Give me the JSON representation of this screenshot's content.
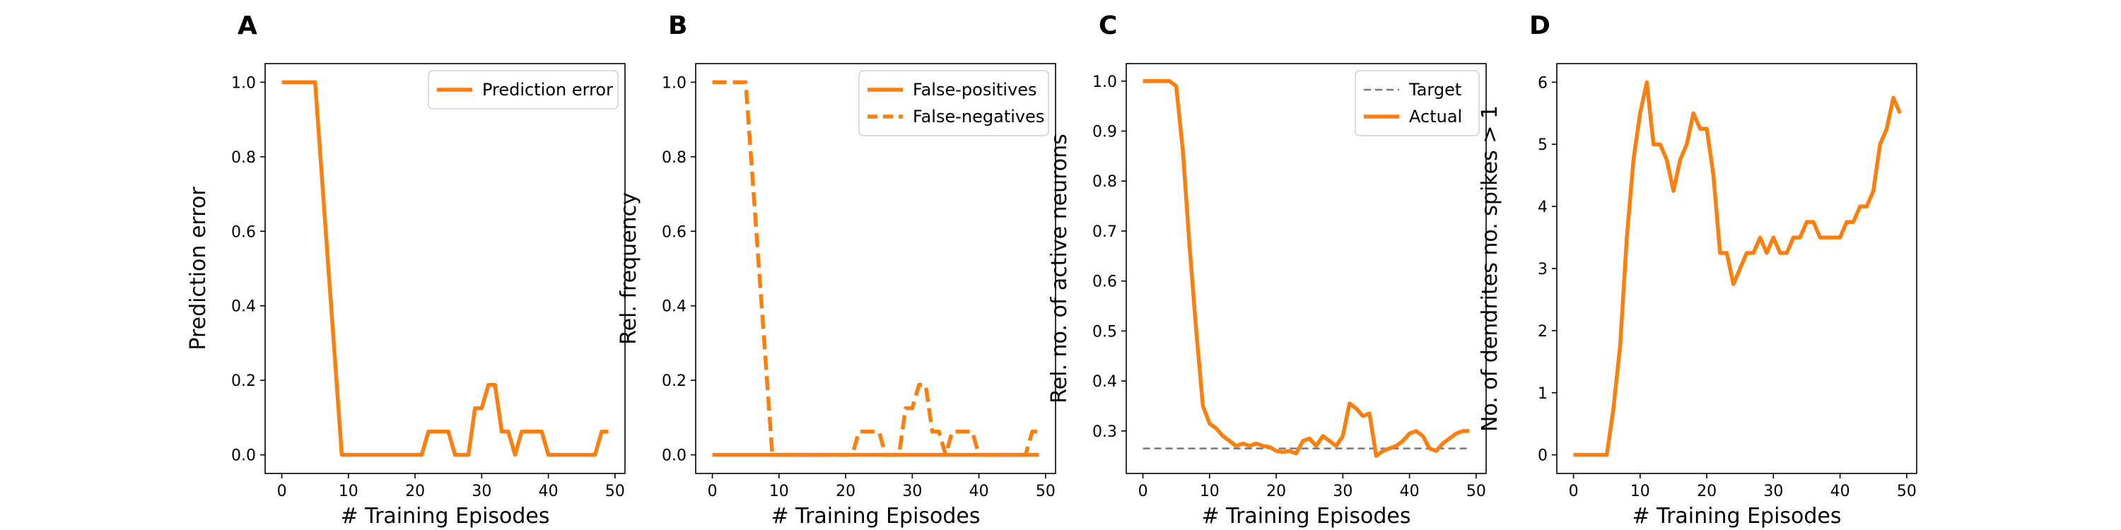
{
  "colors": {
    "orange": "#ff7f0e",
    "target": "#707a8a",
    "axis": "#000000"
  },
  "chart_data": [
    {
      "panel": "A",
      "type": "line",
      "xlabel": "# Training Episodes",
      "ylabel": "Prediction error",
      "xlim": [
        -2.5,
        51.5
      ],
      "ylim": [
        -0.05,
        1.05
      ],
      "xticks": [
        0,
        10,
        20,
        30,
        40,
        50
      ],
      "yticks": [
        0.0,
        0.2,
        0.4,
        0.6,
        0.8,
        1.0
      ],
      "ytick_labels": [
        "0.0",
        "0.2",
        "0.4",
        "0.6",
        "0.8",
        "1.0"
      ],
      "legend_position": "upper right",
      "series": [
        {
          "name": "Prediction error",
          "color": "#ff7f0e",
          "style": "solid",
          "x": [
            0,
            1,
            2,
            3,
            4,
            5,
            6,
            7,
            8,
            9,
            10,
            11,
            12,
            13,
            14,
            15,
            16,
            17,
            18,
            19,
            20,
            21,
            22,
            23,
            24,
            25,
            26,
            27,
            28,
            29,
            30,
            31,
            32,
            33,
            34,
            35,
            36,
            37,
            38,
            39,
            40,
            41,
            42,
            43,
            44,
            45,
            46,
            47,
            48,
            49
          ],
          "y": [
            1,
            1,
            1,
            1,
            1,
            1,
            0.75,
            0.5,
            0.25,
            0,
            0,
            0,
            0,
            0,
            0,
            0,
            0,
            0,
            0,
            0,
            0,
            0,
            0.0625,
            0.0625,
            0.0625,
            0.0625,
            0,
            0,
            0,
            0.125,
            0.125,
            0.1875,
            0.1875,
            0.0625,
            0.0625,
            0,
            0.0625,
            0.0625,
            0.0625,
            0.0625,
            0,
            0,
            0,
            0,
            0,
            0,
            0,
            0,
            0.0625,
            0.0625
          ]
        }
      ]
    },
    {
      "panel": "B",
      "type": "line",
      "xlabel": "# Training Episodes",
      "ylabel": "Rel. frequency",
      "xlim": [
        -2.5,
        51.5
      ],
      "ylim": [
        -0.05,
        1.05
      ],
      "xticks": [
        0,
        10,
        20,
        30,
        40,
        50
      ],
      "yticks": [
        0.0,
        0.2,
        0.4,
        0.6,
        0.8,
        1.0
      ],
      "ytick_labels": [
        "0.0",
        "0.2",
        "0.4",
        "0.6",
        "0.8",
        "1.0"
      ],
      "legend_position": "upper right",
      "series": [
        {
          "name": "False-positives",
          "color": "#ff7f0e",
          "style": "solid",
          "x": [
            0,
            1,
            2,
            3,
            4,
            5,
            6,
            7,
            8,
            9,
            10,
            11,
            12,
            13,
            14,
            15,
            16,
            17,
            18,
            19,
            20,
            21,
            22,
            23,
            24,
            25,
            26,
            27,
            28,
            29,
            30,
            31,
            32,
            33,
            34,
            35,
            36,
            37,
            38,
            39,
            40,
            41,
            42,
            43,
            44,
            45,
            46,
            47,
            48,
            49
          ],
          "y": [
            0,
            0,
            0,
            0,
            0,
            0,
            0,
            0,
            0,
            0,
            0,
            0,
            0,
            0,
            0,
            0,
            0,
            0,
            0,
            0,
            0,
            0,
            0,
            0,
            0,
            0,
            0,
            0,
            0,
            0,
            0,
            0,
            0,
            0,
            0,
            0,
            0,
            0,
            0,
            0,
            0,
            0,
            0,
            0,
            0,
            0,
            0,
            0,
            0,
            0
          ]
        },
        {
          "name": "False-negatives",
          "color": "#ff7f0e",
          "style": "dashed",
          "x": [
            0,
            1,
            2,
            3,
            4,
            5,
            6,
            7,
            8,
            9,
            10,
            11,
            12,
            13,
            14,
            15,
            16,
            17,
            18,
            19,
            20,
            21,
            22,
            23,
            24,
            25,
            26,
            27,
            28,
            29,
            30,
            31,
            32,
            33,
            34,
            35,
            36,
            37,
            38,
            39,
            40,
            41,
            42,
            43,
            44,
            45,
            46,
            47,
            48,
            49
          ],
          "y": [
            1,
            1,
            1,
            1,
            1,
            1,
            0.75,
            0.5,
            0.25,
            0,
            0,
            0,
            0,
            0,
            0,
            0,
            0,
            0,
            0,
            0,
            0,
            0,
            0.0625,
            0.0625,
            0.0625,
            0.0625,
            0,
            0,
            0,
            0.125,
            0.125,
            0.1875,
            0.1875,
            0.0625,
            0.0625,
            0,
            0.0625,
            0.0625,
            0.0625,
            0.0625,
            0,
            0,
            0,
            0,
            0,
            0,
            0,
            0,
            0.0625,
            0.0625
          ]
        }
      ]
    },
    {
      "panel": "C",
      "type": "line",
      "xlabel": "# Training Episodes",
      "ylabel": "Rel. no. of active neurons",
      "xlim": [
        -2.5,
        51.5
      ],
      "ylim": [
        0.215,
        1.035
      ],
      "xticks": [
        0,
        10,
        20,
        30,
        40,
        50
      ],
      "yticks": [
        0.3,
        0.4,
        0.5,
        0.6,
        0.7,
        0.8,
        0.9,
        1.0
      ],
      "ytick_labels": [
        "0.3",
        "0.4",
        "0.5",
        "0.6",
        "0.7",
        "0.8",
        "0.9",
        "1.0"
      ],
      "legend_position": "upper right",
      "series": [
        {
          "name": "Target",
          "color": "#707a8a",
          "style": "dashed",
          "x": [
            0,
            49
          ],
          "y": [
            0.265,
            0.265
          ]
        },
        {
          "name": "Actual",
          "color": "#ff7f0e",
          "style": "solid",
          "x": [
            0,
            1,
            2,
            3,
            4,
            5,
            6,
            7,
            8,
            9,
            10,
            11,
            12,
            13,
            14,
            15,
            16,
            17,
            18,
            19,
            20,
            21,
            22,
            23,
            24,
            25,
            26,
            27,
            28,
            29,
            30,
            31,
            32,
            33,
            34,
            35,
            36,
            37,
            38,
            39,
            40,
            41,
            42,
            43,
            44,
            45,
            46,
            47,
            48,
            49
          ],
          "y": [
            1.0,
            1.0,
            1.0,
            1.0,
            1.0,
            0.99,
            0.86,
            0.67,
            0.5,
            0.35,
            0.315,
            0.305,
            0.29,
            0.28,
            0.27,
            0.275,
            0.27,
            0.275,
            0.27,
            0.268,
            0.26,
            0.258,
            0.26,
            0.255,
            0.28,
            0.285,
            0.27,
            0.29,
            0.28,
            0.27,
            0.29,
            0.355,
            0.345,
            0.33,
            0.335,
            0.25,
            0.26,
            0.265,
            0.27,
            0.28,
            0.295,
            0.3,
            0.29,
            0.265,
            0.26,
            0.275,
            0.285,
            0.295,
            0.3,
            0.3
          ]
        }
      ]
    },
    {
      "panel": "D",
      "type": "line",
      "xlabel": "# Training Episodes",
      "ylabel": "No. of dendrites no. spikes > 1",
      "xlim": [
        -2.5,
        51.5
      ],
      "ylim": [
        -0.3,
        6.3
      ],
      "xticks": [
        0,
        10,
        20,
        30,
        40,
        50
      ],
      "yticks": [
        0,
        1,
        2,
        3,
        4,
        5,
        6
      ],
      "ytick_labels": [
        "0",
        "1",
        "2",
        "3",
        "4",
        "5",
        "6"
      ],
      "series": [
        {
          "color": "#ff7f0e",
          "style": "solid",
          "x": [
            0,
            1,
            2,
            3,
            4,
            5,
            6,
            7,
            8,
            9,
            10,
            11,
            12,
            13,
            14,
            15,
            16,
            17,
            18,
            19,
            20,
            21,
            22,
            23,
            24,
            25,
            26,
            27,
            28,
            29,
            30,
            31,
            32,
            33,
            34,
            35,
            36,
            37,
            38,
            39,
            40,
            41,
            42,
            43,
            44,
            45,
            46,
            47,
            48,
            49
          ],
          "y": [
            0,
            0,
            0,
            0,
            0,
            0,
            0.75,
            1.75,
            3.5,
            4.75,
            5.5,
            6.0,
            5.0,
            5.0,
            4.75,
            4.25,
            4.75,
            5.0,
            5.5,
            5.25,
            5.25,
            4.5,
            3.25,
            3.25,
            2.75,
            3.0,
            3.25,
            3.25,
            3.5,
            3.25,
            3.5,
            3.25,
            3.25,
            3.5,
            3.5,
            3.75,
            3.75,
            3.5,
            3.5,
            3.5,
            3.5,
            3.75,
            3.75,
            4.0,
            4.0,
            4.25,
            5.0,
            5.25,
            5.75,
            5.5
          ]
        }
      ]
    }
  ]
}
